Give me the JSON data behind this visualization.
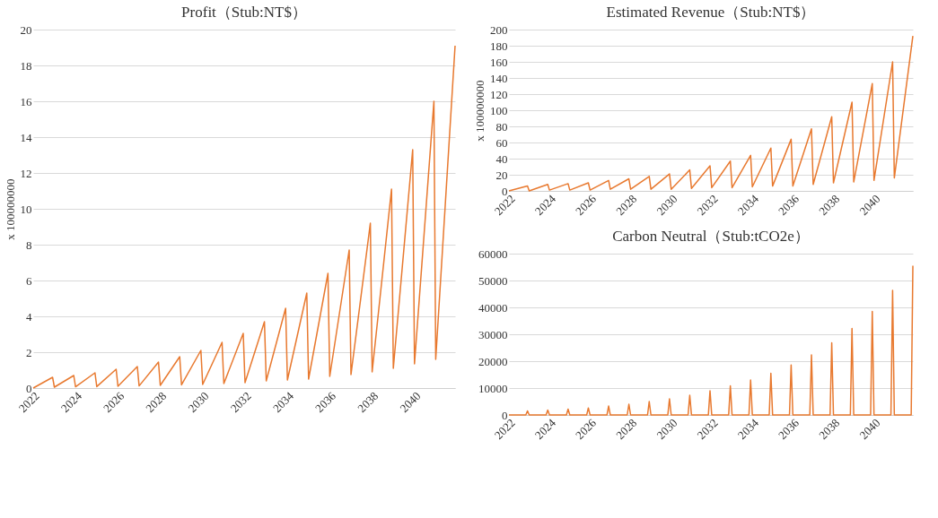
{
  "chart_data": [
    {
      "type": "line",
      "title": "Profit（Stub:NT$）",
      "ylabel": "x 100000000",
      "color": "#e8792f",
      "grid": "y",
      "line_style": "solid",
      "x": [
        "2022-01",
        "2022-12",
        "2023-01",
        "2023-12",
        "2024-01",
        "2024-12",
        "2025-01",
        "2025-12",
        "2026-01",
        "2026-12",
        "2027-01",
        "2027-12",
        "2028-01",
        "2028-12",
        "2029-01",
        "2029-12",
        "2030-01",
        "2030-12",
        "2031-01",
        "2031-12",
        "2032-01",
        "2032-12",
        "2033-01",
        "2033-12",
        "2034-01",
        "2034-12",
        "2035-01",
        "2035-12",
        "2036-01",
        "2036-12",
        "2037-01",
        "2037-12",
        "2038-01",
        "2038-12",
        "2039-01",
        "2039-12",
        "2040-01",
        "2040-12",
        "2041-01",
        "2041-12"
      ],
      "values": [
        0.0,
        0.6,
        0.05,
        0.7,
        0.07,
        0.85,
        0.08,
        1.05,
        0.1,
        1.2,
        0.12,
        1.45,
        0.15,
        1.75,
        0.18,
        2.1,
        0.2,
        2.55,
        0.25,
        3.05,
        0.3,
        3.7,
        0.4,
        4.45,
        0.45,
        5.3,
        0.5,
        6.4,
        0.65,
        7.7,
        0.75,
        9.2,
        0.9,
        11.1,
        1.1,
        13.3,
        1.35,
        16.0,
        1.6,
        19.1
      ],
      "xlim": [
        "2022-01",
        "2041-12"
      ],
      "xticks": [
        "2022",
        "2024",
        "2026",
        "2028",
        "2030",
        "2032",
        "2034",
        "2036",
        "2038",
        "2040"
      ],
      "ylim": [
        0,
        20
      ],
      "yticks": [
        0,
        2,
        4,
        6,
        8,
        10,
        12,
        14,
        16,
        18,
        20
      ]
    },
    {
      "type": "line",
      "title": "Estimated Revenue（Stub:NT$）",
      "ylabel": "x 100000000",
      "color": "#e8792f",
      "grid": "y",
      "line_style": "solid",
      "x": [
        "2022-01",
        "2022-12",
        "2023-01",
        "2023-12",
        "2024-01",
        "2024-12",
        "2025-01",
        "2025-12",
        "2026-01",
        "2026-12",
        "2027-01",
        "2027-12",
        "2028-01",
        "2028-12",
        "2029-01",
        "2029-12",
        "2030-01",
        "2030-12",
        "2031-01",
        "2031-12",
        "2032-01",
        "2032-12",
        "2033-01",
        "2033-12",
        "2034-01",
        "2034-12",
        "2035-01",
        "2035-12",
        "2036-01",
        "2036-12",
        "2037-01",
        "2037-12",
        "2038-01",
        "2038-12",
        "2039-01",
        "2039-12",
        "2040-01",
        "2040-12",
        "2041-01",
        "2041-12"
      ],
      "values": [
        0,
        6,
        0,
        8,
        1,
        9,
        1,
        10,
        1,
        13,
        2,
        15,
        2,
        18,
        2,
        21,
        2,
        26,
        3,
        31,
        4,
        37,
        4,
        44,
        5,
        53,
        6,
        64,
        6,
        77,
        8,
        92,
        10,
        110,
        11,
        133,
        13,
        160,
        16,
        192
      ],
      "xlim": [
        "2022-01",
        "2041-12"
      ],
      "xticks": [
        "2022",
        "2024",
        "2026",
        "2028",
        "2030",
        "2032",
        "2034",
        "2036",
        "2038",
        "2040"
      ],
      "ylim": [
        0,
        200
      ],
      "yticks": [
        0,
        20,
        40,
        60,
        80,
        100,
        120,
        140,
        160,
        180,
        200
      ]
    },
    {
      "type": "line",
      "title": "Carbon Neutral（Stub:tCO2e）",
      "color": "#e8792f",
      "grid": "y",
      "line_style": "solid",
      "x": [
        "2022-01",
        "2022-11",
        "2022-12",
        "2023-01",
        "2023-11",
        "2023-12",
        "2024-01",
        "2024-11",
        "2024-12",
        "2025-01",
        "2025-11",
        "2025-12",
        "2026-01",
        "2026-11",
        "2026-12",
        "2027-01",
        "2027-11",
        "2027-12",
        "2028-01",
        "2028-11",
        "2028-12",
        "2029-01",
        "2029-11",
        "2029-12",
        "2030-01",
        "2030-11",
        "2030-12",
        "2031-01",
        "2031-11",
        "2031-12",
        "2032-01",
        "2032-11",
        "2032-12",
        "2033-01",
        "2033-11",
        "2033-12",
        "2034-01",
        "2034-11",
        "2034-12",
        "2035-01",
        "2035-11",
        "2035-12",
        "2036-01",
        "2036-11",
        "2036-12",
        "2037-01",
        "2037-11",
        "2037-12",
        "2038-01",
        "2038-11",
        "2038-12",
        "2039-01",
        "2039-11",
        "2039-12",
        "2040-01",
        "2040-11",
        "2040-12",
        "2041-01",
        "2041-11",
        "2041-12"
      ],
      "values": [
        0,
        0,
        1500,
        0,
        0,
        1800,
        0,
        0,
        2200,
        0,
        0,
        2600,
        0,
        0,
        3300,
        0,
        0,
        4000,
        0,
        0,
        5000,
        0,
        0,
        6000,
        0,
        0,
        7300,
        0,
        0,
        9000,
        0,
        0,
        10800,
        0,
        0,
        13000,
        0,
        0,
        15500,
        0,
        0,
        18600,
        0,
        0,
        22300,
        0,
        0,
        26800,
        0,
        0,
        32200,
        0,
        0,
        38500,
        0,
        0,
        46300,
        0,
        0,
        55500
      ],
      "xlim": [
        "2022-01",
        "2041-12"
      ],
      "xticks": [
        "2022",
        "2024",
        "2026",
        "2028",
        "2030",
        "2032",
        "2034",
        "2036",
        "2038",
        "2040"
      ],
      "ylim": [
        0,
        60000
      ],
      "yticks": [
        0,
        10000,
        20000,
        30000,
        40000,
        50000,
        60000
      ]
    }
  ]
}
